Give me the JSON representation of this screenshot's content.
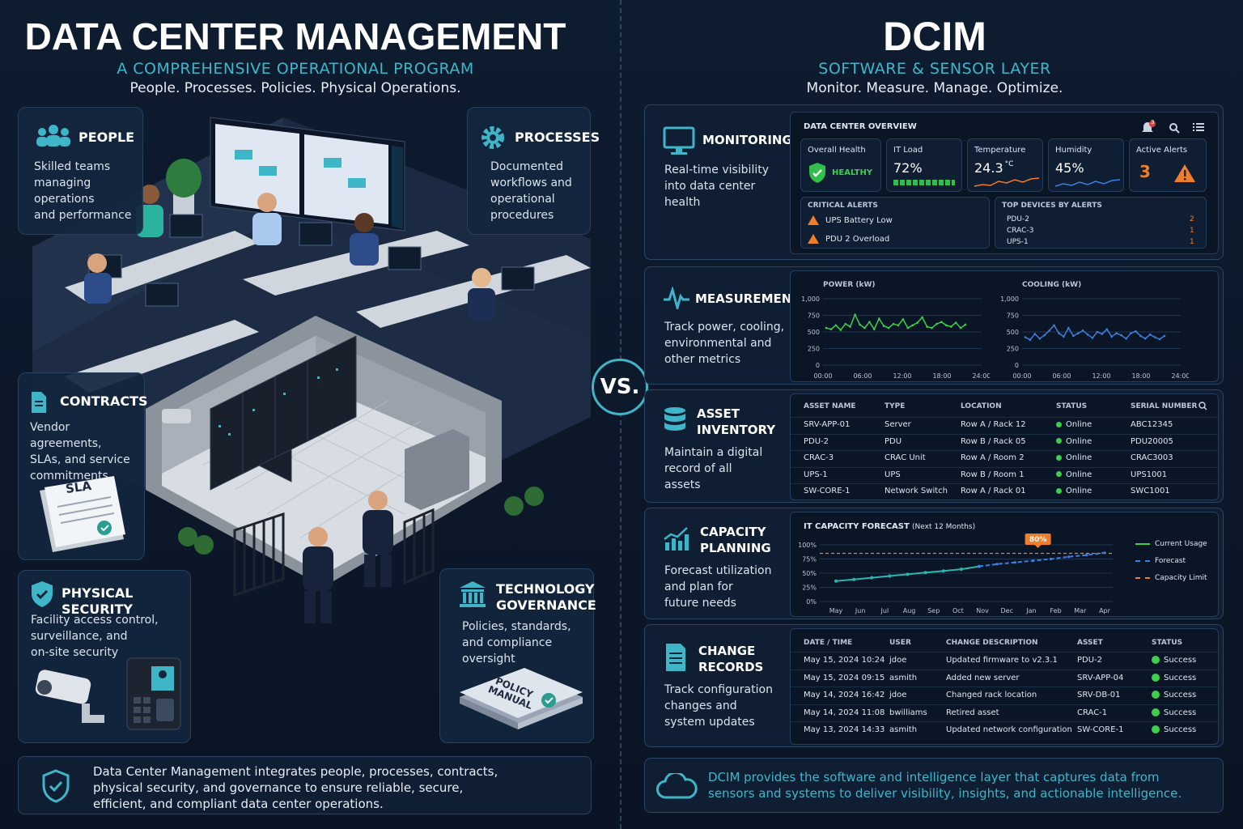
{
  "left": {
    "title": "DATA CENTER MANAGEMENT",
    "subtitle": "A COMPREHENSIVE OPERATIONAL PROGRAM",
    "tagline": "People. Processes. Policies. Physical Operations.",
    "people": {
      "title": "PEOPLE",
      "desc": [
        "Skilled teams",
        "managing",
        "operations",
        "and performance"
      ]
    },
    "processes": {
      "title": "PROCESSES",
      "desc": [
        "Documented",
        "workflows and",
        "operational",
        "procedures"
      ]
    },
    "contracts": {
      "title": "CONTRACTS",
      "desc": [
        "Vendor agreements,",
        "SLAs, and service",
        "commitments"
      ],
      "sla_label": "SLA"
    },
    "security": {
      "title": "PHYSICAL SECURITY",
      "desc": [
        "Facility access control,",
        "surveillance, and",
        "on-site security"
      ]
    },
    "governance": {
      "title": [
        "TECHNOLOGY",
        "GOVERNANCE"
      ],
      "desc": [
        "Policies, standards,",
        "and compliance",
        "oversight"
      ],
      "manual_label": [
        "POLICY",
        "MANUAL"
      ]
    },
    "footer": [
      "Data Center Management integrates people, processes, contracts,",
      "physical security, and governance to ensure reliable, secure,",
      "efficient, and compliant data center operations."
    ]
  },
  "vs": "VS.",
  "right": {
    "title": "DCIM",
    "subtitle": "SOFTWARE & SENSOR LAYER",
    "tagline": "Monitor. Measure. Manage. Optimize.",
    "monitoring": {
      "title": "MONITORING",
      "desc": [
        "Real-time visibility",
        "into data center",
        "health"
      ],
      "overview_title": "DATA CENTER OVERVIEW",
      "notif_count": "3",
      "tiles": [
        {
          "label": "Overall Health",
          "value": "HEALTHY"
        },
        {
          "label": "IT Load",
          "value": "72%"
        },
        {
          "label": "Temperature",
          "value": "24.3",
          "unit": "°C"
        },
        {
          "label": "Humidity",
          "value": "45%"
        },
        {
          "label": "Active Alerts",
          "value": "3"
        }
      ],
      "critical_title": "CRITICAL ALERTS",
      "critical": [
        "UPS Battery Low",
        "PDU 2 Overload"
      ],
      "top_title": "TOP DEVICES BY ALERTS",
      "top": [
        {
          "name": "PDU-2",
          "count": "2"
        },
        {
          "name": "CRAC-3",
          "count": "1"
        },
        {
          "name": "UPS-1",
          "count": "1"
        }
      ]
    },
    "measurement": {
      "title": "MEASUREMENT",
      "desc": [
        "Track power, cooling,",
        "environmental and",
        "other metrics"
      ],
      "power_title": "POWER (kW)",
      "cooling_title": "COOLING (kW)",
      "y_ticks": [
        "1,000",
        "750",
        "500",
        "250",
        "0"
      ],
      "x_ticks": [
        "00:00",
        "06:00",
        "12:00",
        "18:00",
        "24:00"
      ],
      "power_series": [
        560,
        540,
        600,
        530,
        620,
        580,
        760,
        610,
        560,
        650,
        540,
        700,
        590,
        560,
        620,
        600,
        690,
        560,
        600,
        640,
        720,
        580,
        560,
        620,
        650,
        600,
        580,
        640,
        560,
        610
      ],
      "cooling_series": [
        420,
        380,
        470,
        400,
        450,
        520,
        600,
        480,
        430,
        560,
        440,
        480,
        520,
        460,
        410,
        500,
        470,
        540,
        430,
        480,
        450,
        400,
        480,
        510,
        440,
        400,
        460,
        420,
        390,
        440
      ]
    },
    "asset": {
      "title": [
        "ASSET",
        "INVENTORY"
      ],
      "desc": [
        "Maintain a digital",
        "record of all",
        "assets"
      ],
      "headers": [
        "ASSET NAME",
        "TYPE",
        "LOCATION",
        "STATUS",
        "SERIAL NUMBER"
      ],
      "rows": [
        [
          "SRV-APP-01",
          "Server",
          "Row A / Rack 12",
          "Online",
          "ABC12345"
        ],
        [
          "PDU-2",
          "PDU",
          "Row B / Rack 05",
          "Online",
          "PDU20005"
        ],
        [
          "CRAC-3",
          "CRAC Unit",
          "Row A / Room 2",
          "Online",
          "CRAC3003"
        ],
        [
          "UPS-1",
          "UPS",
          "Row B / Room 1",
          "Online",
          "UPS1001"
        ],
        [
          "SW-CORE-1",
          "Network Switch",
          "Row A / Rack 01",
          "Online",
          "SWC1001"
        ]
      ]
    },
    "capacity": {
      "title": [
        "CAPACITY",
        "PLANNING"
      ],
      "desc": [
        "Forecast utilization",
        "and plan for",
        "future needs"
      ],
      "chart_title": "IT CAPACITY FORECAST",
      "chart_subtitle": "(Next 12 Months)",
      "callout": "80%",
      "y_ticks": [
        "100%",
        "75%",
        "50%",
        "25%",
        "0%"
      ],
      "months": [
        "May",
        "Jun",
        "Jul",
        "Aug",
        "Sep",
        "Oct",
        "Nov",
        "Dec",
        "Jan",
        "Feb",
        "Mar",
        "Apr"
      ],
      "legend": [
        "Current Usage",
        "Forecast",
        "Capacity Limit"
      ],
      "current": [
        36,
        39,
        42,
        45,
        48,
        51,
        54,
        57,
        62
      ],
      "forecast": [
        62,
        66,
        69,
        72,
        75,
        79,
        82,
        86
      ],
      "limit": 85
    },
    "change": {
      "title": [
        "CHANGE",
        "RECORDS"
      ],
      "desc": [
        "Track configuration",
        "changes and",
        "system updates"
      ],
      "headers": [
        "DATE / TIME",
        "USER",
        "CHANGE DESCRIPTION",
        "ASSET",
        "STATUS"
      ],
      "rows": [
        [
          "May 15, 2024 10:24",
          "jdoe",
          "Updated firmware to v2.3.1",
          "PDU-2",
          "Success"
        ],
        [
          "May 15, 2024 09:15",
          "asmith",
          "Added new server",
          "SRV-APP-04",
          "Success"
        ],
        [
          "May 14, 2024 16:42",
          "jdoe",
          "Changed rack location",
          "SRV-DB-01",
          "Success"
        ],
        [
          "May 14, 2024 11:08",
          "bwilliams",
          "Retired asset",
          "CRAC-1",
          "Success"
        ],
        [
          "May 13, 2024 14:33",
          "asmith",
          "Updated network configuration",
          "SW-CORE-1",
          "Success"
        ]
      ]
    },
    "footer": [
      "DCIM provides the software and intelligence layer that captures data from",
      "sensors and systems to deliver visibility, insights, and actionable intelligence."
    ]
  }
}
